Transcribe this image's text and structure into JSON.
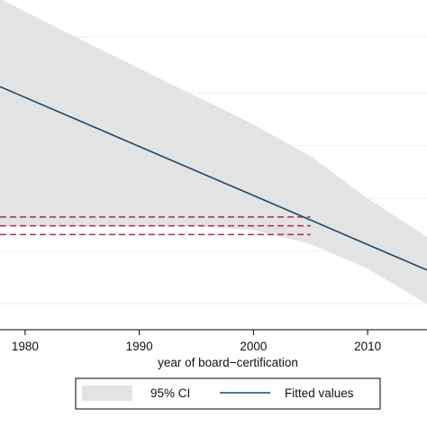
{
  "chart_data": {
    "type": "line",
    "xlabel": "year of board−certification",
    "ylabel": "",
    "xlim": [
      1977.8,
      2015.2
    ],
    "ylim": [
      0,
      1
    ],
    "x_ticks": [
      1980,
      1990,
      2000,
      2010
    ],
    "x_tick_labels": [
      "1980",
      "1990",
      "2000",
      "2010"
    ],
    "grid": true,
    "legend_position": "bottom",
    "series": [
      {
        "name": "Fitted values",
        "kind": "line",
        "color": "#1a476f",
        "x": [
          1977.8,
          2015.2
        ],
        "y": [
          0.738,
          0.216
        ]
      },
      {
        "name": "95% CI",
        "kind": "band",
        "color": "#e3e3e3",
        "x": [
          1977.8,
          1985,
          1990,
          1995,
          2000,
          2005,
          2010,
          2015.2
        ],
        "upper": [
          0.988,
          0.87,
          0.79,
          0.71,
          0.63,
          0.54,
          0.42,
          0.31
        ],
        "lower": [
          0.34,
          0.34,
          0.34,
          0.34,
          0.33,
          0.29,
          0.22,
          0.12
        ]
      }
    ],
    "reference_lines": [
      {
        "style": "dashed",
        "color": "#a8324a",
        "y": 0.367,
        "x_end": 2005
      },
      {
        "style": "dashed",
        "color": "#a8324a",
        "y": 0.342,
        "x_end": 2005
      },
      {
        "style": "dashed",
        "color": "#a8324a",
        "y": 0.317,
        "x_end": 2005
      }
    ]
  }
}
